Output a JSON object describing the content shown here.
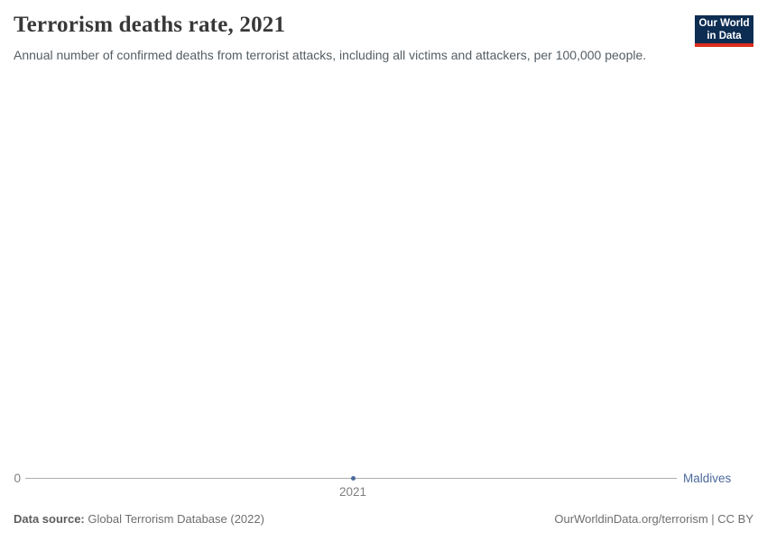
{
  "header": {
    "title": "Terrorism deaths rate, 2021",
    "subtitle": "Annual number of confirmed deaths from terrorist attacks, including all victims and attackers, per 100,000 people.",
    "logo": {
      "line1": "Our World",
      "line2": "in Data"
    }
  },
  "chart_data": {
    "type": "line",
    "title": "Terrorism deaths rate, 2021",
    "x": [
      2021
    ],
    "x_ticks": [
      "2021"
    ],
    "y_ticks": [
      "0"
    ],
    "ylim": [
      0,
      null
    ],
    "xlabel": "",
    "ylabel": "",
    "grid": false,
    "legend_position": "right-of-line",
    "series": [
      {
        "name": "Maldives",
        "values": [
          0
        ],
        "color": "#4c6a9c"
      }
    ]
  },
  "footer": {
    "source_label": "Data source:",
    "source_value": "Global Terrorism Database (2022)",
    "attribution": "OurWorldinData.org/terrorism | CC BY"
  },
  "colors": {
    "series_blue": "#4c6a9c",
    "logo_navy": "#0d2d52",
    "logo_red": "#dc2c1f",
    "axis_line": "#adadad",
    "tick_text": "#808080",
    "title_text": "#383838",
    "subtitle_text": "#555d63",
    "footer_text": "#6e6e6e"
  }
}
